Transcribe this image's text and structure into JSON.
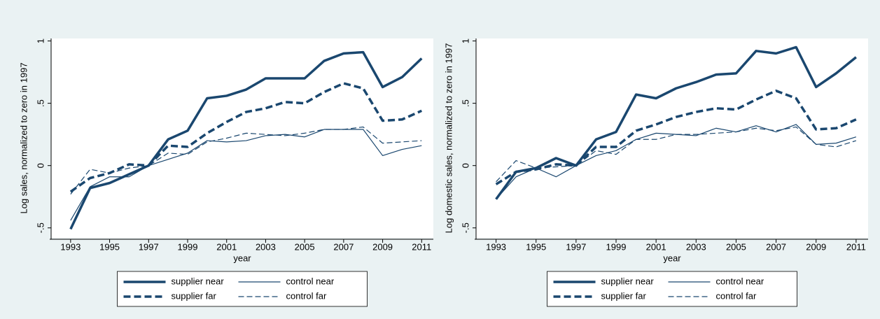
{
  "chart_data": [
    {
      "type": "line",
      "x_label": "year",
      "y_label": "Log sales, normalized to zero in 1997",
      "x": [
        1993,
        1994,
        1995,
        1996,
        1997,
        1998,
        1999,
        2000,
        2001,
        2002,
        2003,
        2004,
        2005,
        2006,
        2007,
        2008,
        2009,
        2010,
        2011
      ],
      "xlim": [
        1992,
        2011.6
      ],
      "xticks": [
        1993,
        1995,
        1997,
        1999,
        2001,
        2003,
        2005,
        2007,
        2009,
        2011
      ],
      "ylim": [
        -0.58,
        1.02
      ],
      "yticks": [
        {
          "value": -0.5,
          "label": "-.5"
        },
        0,
        {
          "value": 0.5,
          "label": ".5"
        },
        1
      ],
      "legend": "bottom",
      "series": [
        {
          "name": "supplier near",
          "color": "#1a476f",
          "line_width": "thick",
          "line_style": "solid",
          "values": [
            -0.51,
            -0.18,
            -0.14,
            -0.07,
            0,
            0.21,
            0.28,
            0.54,
            0.56,
            0.61,
            0.7,
            0.7,
            0.7,
            0.84,
            0.9,
            0.91,
            0.63,
            0.71,
            0.86
          ]
        },
        {
          "name": "control near",
          "color": "#1a476f",
          "line_width": "thin",
          "line_style": "solid",
          "values": [
            -0.44,
            -0.17,
            -0.09,
            -0.09,
            0,
            0.05,
            0.1,
            0.2,
            0.19,
            0.2,
            0.24,
            0.25,
            0.23,
            0.29,
            0.29,
            0.29,
            0.08,
            0.13,
            0.16
          ]
        },
        {
          "name": "supplier far",
          "color": "#1a476f",
          "line_width": "thick",
          "line_style": "dashed",
          "values": [
            -0.21,
            -0.1,
            -0.06,
            0.01,
            0,
            0.16,
            0.15,
            0.26,
            0.35,
            0.43,
            0.46,
            0.51,
            0.5,
            0.59,
            0.66,
            0.62,
            0.36,
            0.37,
            0.44
          ]
        },
        {
          "name": "control far",
          "color": "#1a476f",
          "line_width": "thin",
          "line_style": "dashed",
          "values": [
            -0.23,
            -0.03,
            -0.06,
            -0.02,
            0,
            0.1,
            0.09,
            0.19,
            0.22,
            0.26,
            0.25,
            0.24,
            0.26,
            0.29,
            0.29,
            0.31,
            0.18,
            0.19,
            0.2
          ]
        }
      ]
    },
    {
      "type": "line",
      "x_label": "year",
      "y_label": "Log domestic sales, normalized to zero in 1997",
      "x": [
        1993,
        1994,
        1995,
        1996,
        1997,
        1998,
        1999,
        2000,
        2001,
        2002,
        2003,
        2004,
        2005,
        2006,
        2007,
        2008,
        2009,
        2010,
        2011
      ],
      "xlim": [
        1992,
        2011.6
      ],
      "xticks": [
        1993,
        1995,
        1997,
        1999,
        2001,
        2003,
        2005,
        2007,
        2009,
        2011
      ],
      "ylim": [
        -0.58,
        1.02
      ],
      "yticks": [
        {
          "value": -0.5,
          "label": "-.5"
        },
        0,
        {
          "value": 0.5,
          "label": ".5"
        },
        1
      ],
      "legend": "bottom",
      "series": [
        {
          "name": "supplier near",
          "color": "#1a476f",
          "line_width": "thick",
          "line_style": "solid",
          "values": [
            -0.27,
            -0.05,
            -0.02,
            0.06,
            0,
            0.21,
            0.27,
            0.57,
            0.54,
            0.62,
            0.67,
            0.73,
            0.74,
            0.92,
            0.9,
            0.95,
            0.63,
            0.74,
            0.87
          ]
        },
        {
          "name": "control near",
          "color": "#1a476f",
          "line_width": "thin",
          "line_style": "solid",
          "values": [
            -0.27,
            -0.09,
            -0.02,
            -0.09,
            0,
            0.08,
            0.12,
            0.21,
            0.26,
            0.25,
            0.24,
            0.3,
            0.27,
            0.32,
            0.27,
            0.33,
            0.17,
            0.18,
            0.23
          ]
        },
        {
          "name": "supplier far",
          "color": "#1a476f",
          "line_width": "thick",
          "line_style": "dashed",
          "values": [
            -0.15,
            -0.05,
            -0.03,
            0.01,
            0,
            0.15,
            0.15,
            0.28,
            0.33,
            0.39,
            0.43,
            0.46,
            0.45,
            0.53,
            0.6,
            0.54,
            0.29,
            0.3,
            0.37
          ]
        },
        {
          "name": "control far",
          "color": "#1a476f",
          "line_width": "thin",
          "line_style": "dashed",
          "values": [
            -0.13,
            0.04,
            -0.02,
            -0.01,
            0,
            0.12,
            0.09,
            0.21,
            0.21,
            0.25,
            0.25,
            0.26,
            0.27,
            0.3,
            0.28,
            0.31,
            0.17,
            0.15,
            0.2
          ]
        }
      ]
    }
  ]
}
